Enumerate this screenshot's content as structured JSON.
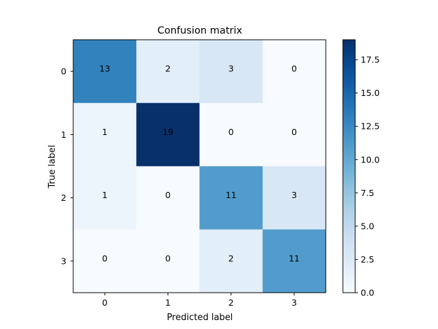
{
  "chart_data": {
    "type": "heatmap",
    "title": "Confusion matrix",
    "xlabel": "Predicted label",
    "ylabel": "True label",
    "x_categories": [
      "0",
      "1",
      "2",
      "3"
    ],
    "y_categories": [
      "0",
      "1",
      "2",
      "3"
    ],
    "values": [
      [
        13,
        2,
        3,
        0
      ],
      [
        1,
        19,
        0,
        0
      ],
      [
        1,
        0,
        11,
        3
      ],
      [
        0,
        0,
        2,
        11
      ]
    ],
    "colormap": "Blues",
    "color_range": [
      0,
      19
    ],
    "colorbar_ticks": [
      "0.0",
      "2.5",
      "5.0",
      "7.5",
      "10.0",
      "12.5",
      "15.0",
      "17.5"
    ],
    "colorbar_tick_values": [
      0,
      2.5,
      5,
      7.5,
      10,
      12.5,
      15,
      17.5
    ],
    "grid": false,
    "annotation_color": "#000000"
  }
}
